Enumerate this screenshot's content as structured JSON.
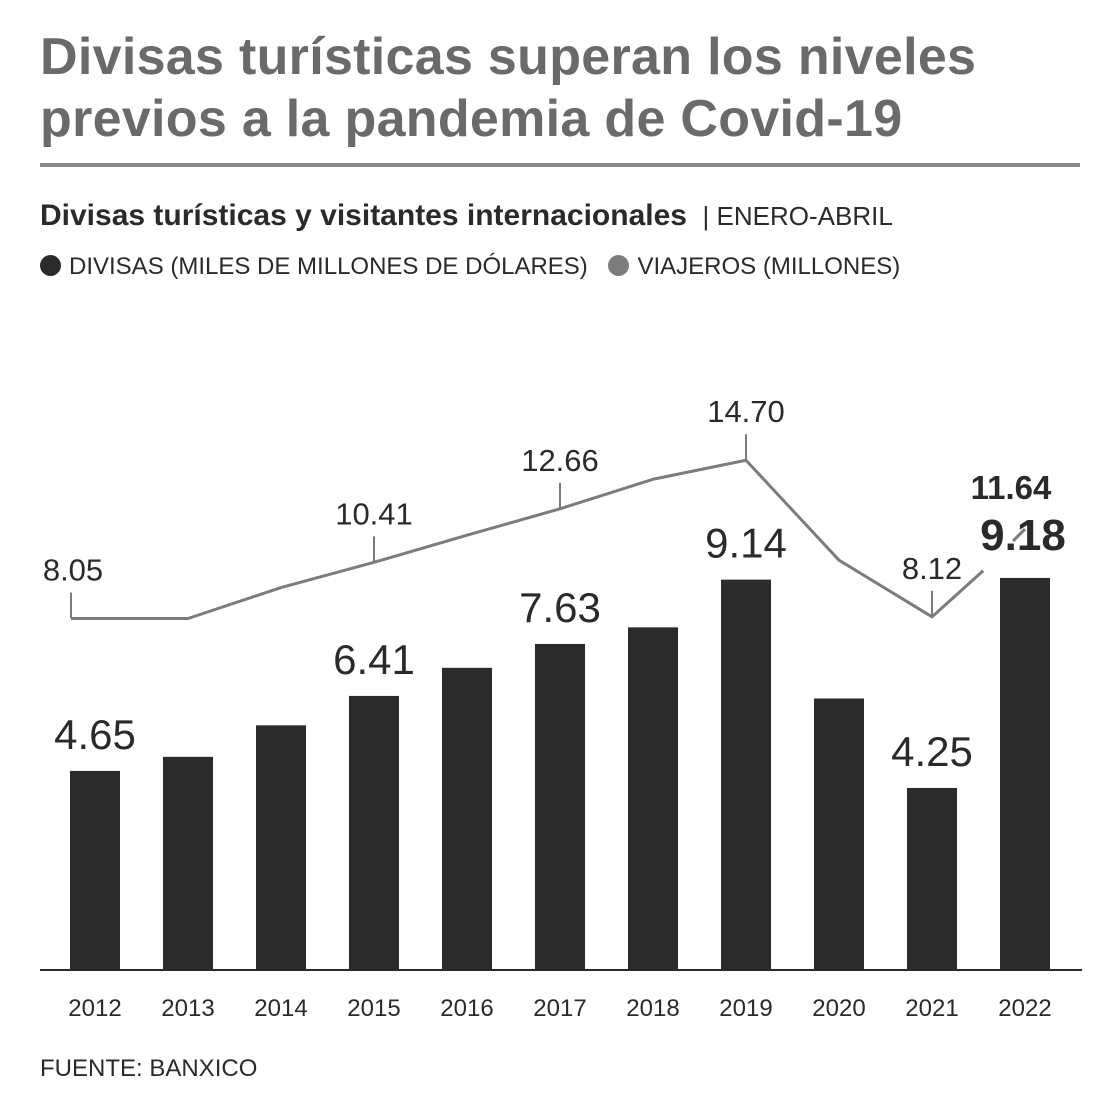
{
  "title": "Divisas turísticas superan los niveles previos a la pandemia de Covid-19",
  "subtitle": "Divisas turísticas y visitantes internacionales",
  "subtitle_period": "ENERO-ABRIL",
  "legend": {
    "divisas": "DIVISAS (MILES DE MILLONES DE DÓLARES)",
    "viajeros": "VIAJEROS (MILLONES)"
  },
  "source": "FUENTE: BANXICO",
  "colors": {
    "bars": "#2b2b2b",
    "line": "#7c7c7c",
    "title": "#6a6a6a"
  },
  "chart_data": {
    "type": "bar",
    "categories": [
      "2012",
      "2013",
      "2014",
      "2015",
      "2016",
      "2017",
      "2018",
      "2019",
      "2020",
      "2021",
      "2022"
    ],
    "series": [
      {
        "name": "DIVISAS (MILES DE MILLONES DE DÓLARES)",
        "type": "bar",
        "values": [
          4.65,
          4.98,
          5.72,
          6.41,
          7.07,
          7.63,
          8.02,
          9.14,
          6.35,
          4.25,
          9.18
        ],
        "labels": {
          "0": "4.65",
          "3": "6.41",
          "5": "7.63",
          "7": "9.14",
          "9": "4.25",
          "10": "9.18"
        }
      },
      {
        "name": "VIAJEROS (MILLONES)",
        "type": "line",
        "values": [
          8.05,
          8.05,
          9.35,
          10.41,
          11.55,
          12.66,
          13.9,
          14.7,
          10.5,
          8.12,
          11.64
        ],
        "labels": {
          "0": "8.05",
          "3": "10.41",
          "5": "12.66",
          "7": "14.70",
          "9": "8.12",
          "10": "11.64"
        }
      }
    ],
    "highlight_index": 10
  }
}
